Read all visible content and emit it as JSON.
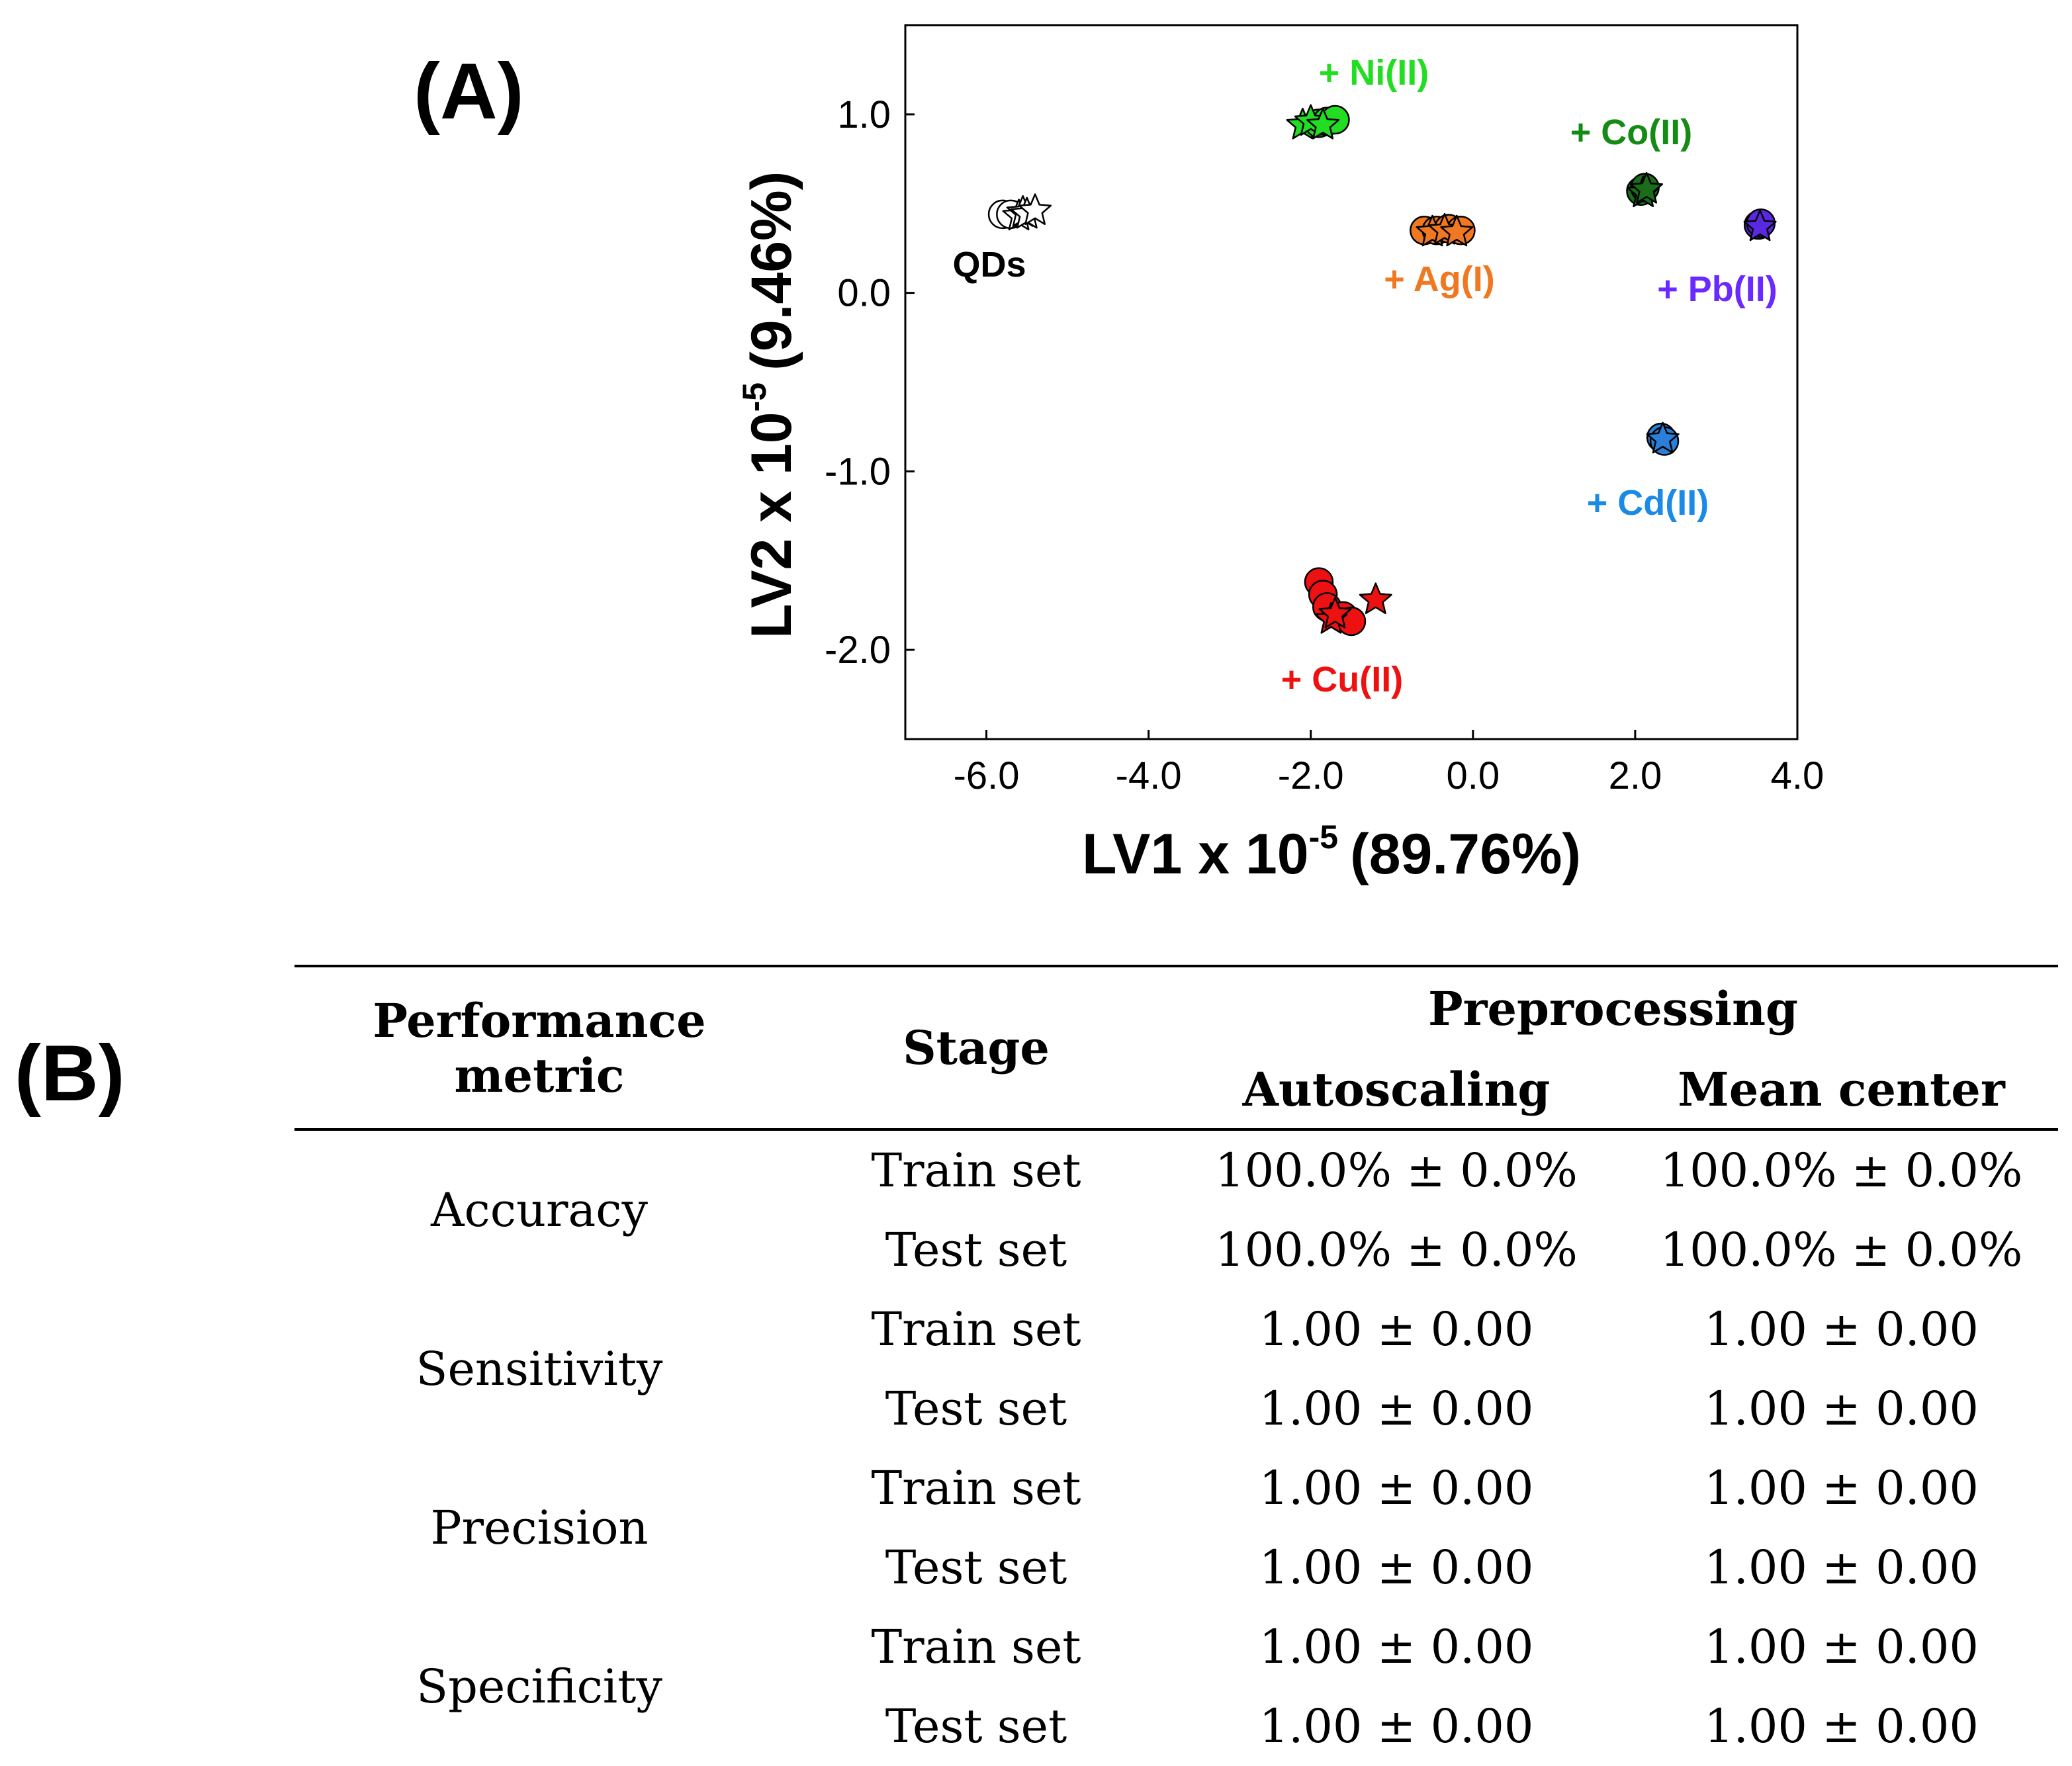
{
  "panels": {
    "a_label": "(A)",
    "b_label": "(B)"
  },
  "chart_data": {
    "type": "scatter",
    "xlabel": "LV1 x 10",
    "xlabel_exp": "-5",
    "xlabel_pct": "(89.76%)",
    "ylabel": "LV2 x 10",
    "ylabel_exp": "-5",
    "ylabel_pct": "(9.46%)",
    "xlim": [
      -7.0,
      4.0
    ],
    "ylim": [
      -2.5,
      1.5
    ],
    "xticks": [
      -6.0,
      -4.0,
      -2.0,
      0.0,
      2.0,
      4.0
    ],
    "xtick_labels": [
      "-6.0",
      "-4.0",
      "-2.0",
      "0.0",
      "2.0",
      "4.0"
    ],
    "yticks": [
      1.0,
      0.0,
      -1.0,
      -2.0
    ],
    "ytick_labels": [
      "1.0",
      "0.0",
      "-1.0",
      "-2.0"
    ],
    "series": [
      {
        "name": "QDs",
        "label": "QDs",
        "color": "#ffffff",
        "label_color": "#000000",
        "points": [
          [
            -5.8,
            0.44
          ],
          [
            -5.7,
            0.44
          ],
          [
            -5.6,
            0.43
          ],
          [
            -5.55,
            0.45
          ],
          [
            -5.5,
            0.44
          ],
          [
            -5.4,
            0.46
          ]
        ],
        "markers": [
          "circle",
          "circle",
          "star",
          "star",
          "star",
          "star"
        ]
      },
      {
        "name": "Ni(II)",
        "label": "+ Ni(II)",
        "color": "#22dd22",
        "label_color": "#22dd22",
        "points": [
          [
            -2.1,
            0.94
          ],
          [
            -1.9,
            0.95
          ],
          [
            -1.8,
            0.96
          ],
          [
            -1.7,
            0.97
          ],
          [
            -2.0,
            0.96
          ],
          [
            -1.85,
            0.94
          ]
        ],
        "markers": [
          "star",
          "circle",
          "circle",
          "circle",
          "star",
          "star"
        ]
      },
      {
        "name": "Co(II)",
        "label": "+ Co(II)",
        "color": "#1a6e1a",
        "label_color": "#158a15",
        "points": [
          [
            2.07,
            0.57
          ],
          [
            2.12,
            0.59
          ],
          [
            2.1,
            0.56
          ],
          [
            2.14,
            0.58
          ]
        ],
        "markers": [
          "circle",
          "circle",
          "star",
          "star"
        ]
      },
      {
        "name": "Ag(I)",
        "label": "+ Ag(I)",
        "color": "#f07820",
        "label_color": "#f07820",
        "points": [
          [
            -0.6,
            0.35
          ],
          [
            -0.45,
            0.35
          ],
          [
            -0.3,
            0.36
          ],
          [
            -0.15,
            0.35
          ],
          [
            -0.5,
            0.34
          ],
          [
            -0.35,
            0.35
          ],
          [
            -0.2,
            0.34
          ]
        ],
        "markers": [
          "circle",
          "circle",
          "circle",
          "circle",
          "star",
          "star",
          "star"
        ]
      },
      {
        "name": "Pb(II)",
        "label": "+ Pb(II)",
        "color": "#5a28e0",
        "label_color": "#6a2aff",
        "points": [
          [
            3.52,
            0.38
          ],
          [
            3.55,
            0.39
          ],
          [
            3.54,
            0.37
          ]
        ],
        "markers": [
          "circle",
          "circle",
          "star"
        ]
      },
      {
        "name": "Cd(II)",
        "label": "+ Cd(II)",
        "color": "#2a7fd8",
        "label_color": "#1a8ae6",
        "points": [
          [
            2.32,
            -0.81
          ],
          [
            2.36,
            -0.83
          ],
          [
            2.34,
            -0.82
          ]
        ],
        "markers": [
          "circle",
          "circle",
          "star"
        ]
      },
      {
        "name": "Cu(II)",
        "label": "+ Cu(II)",
        "color": "#ee1111",
        "label_color": "#ee1111",
        "points": [
          [
            -1.9,
            -1.62
          ],
          [
            -1.85,
            -1.69
          ],
          [
            -1.8,
            -1.76
          ],
          [
            -1.6,
            -1.81
          ],
          [
            -1.5,
            -1.84
          ],
          [
            -1.75,
            -1.83
          ],
          [
            -1.2,
            -1.72
          ],
          [
            -1.7,
            -1.8
          ]
        ],
        "markers": [
          "circle",
          "circle",
          "circle",
          "circle",
          "circle",
          "star",
          "star",
          "star"
        ]
      }
    ]
  },
  "table": {
    "headers": {
      "metric": "Performance metric",
      "stage": "Stage",
      "preprocessing": "Preprocessing",
      "autoscaling": "Autoscaling",
      "mean_center": "Mean center"
    },
    "rows": [
      {
        "metric": "Accuracy",
        "stage": "Train set",
        "autoscaling": "100.0% ± 0.0%",
        "mean_center": "100.0% ± 0.0%"
      },
      {
        "metric": "Accuracy",
        "stage": "Test set",
        "autoscaling": "100.0% ± 0.0%",
        "mean_center": "100.0% ± 0.0%"
      },
      {
        "metric": "Sensitivity",
        "stage": "Train set",
        "autoscaling": "1.00 ± 0.00",
        "mean_center": "1.00 ± 0.00"
      },
      {
        "metric": "Sensitivity",
        "stage": "Test set",
        "autoscaling": "1.00 ± 0.00",
        "mean_center": "1.00 ± 0.00"
      },
      {
        "metric": "Precision",
        "stage": "Train set",
        "autoscaling": "1.00 ± 0.00",
        "mean_center": "1.00 ± 0.00"
      },
      {
        "metric": "Precision",
        "stage": "Test set",
        "autoscaling": "1.00 ± 0.00",
        "mean_center": "1.00 ± 0.00"
      },
      {
        "metric": "Specificity",
        "stage": "Train set",
        "autoscaling": "1.00 ± 0.00",
        "mean_center": "1.00 ± 0.00"
      },
      {
        "metric": "Specificity",
        "stage": "Test set",
        "autoscaling": "1.00 ± 0.00",
        "mean_center": "1.00 ± 0.00"
      }
    ]
  }
}
